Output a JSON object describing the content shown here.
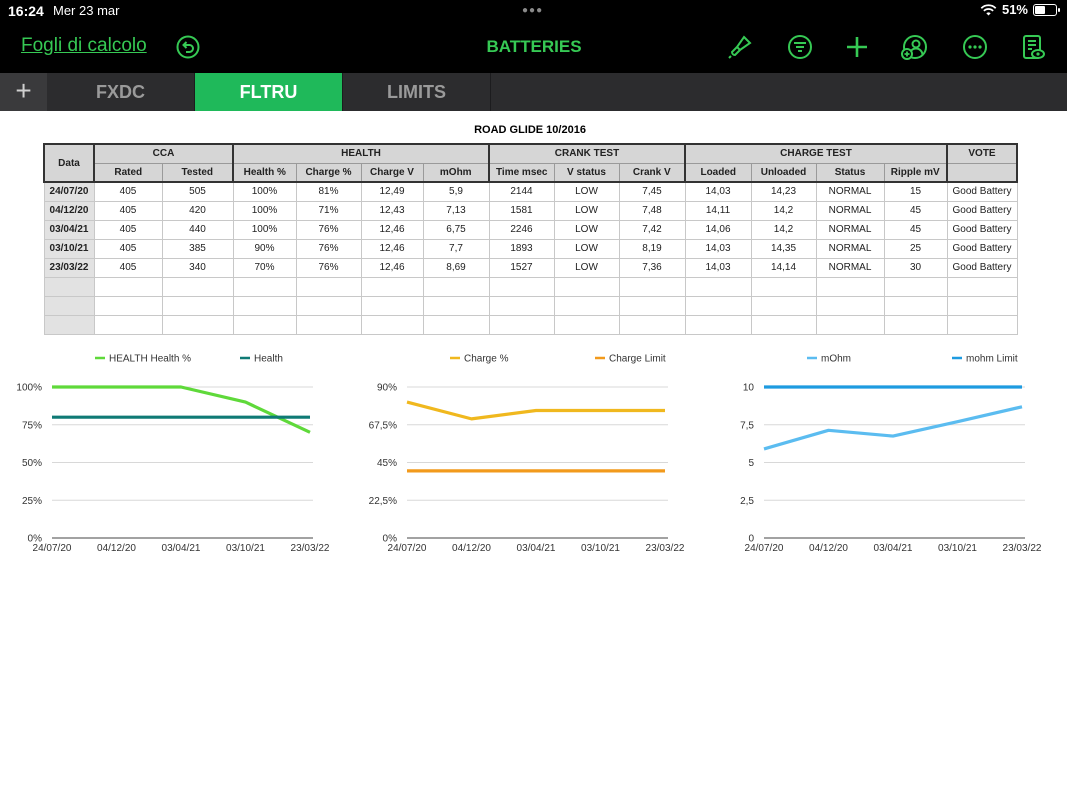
{
  "status": {
    "time": "16:24",
    "date": "Mer 23 mar",
    "battery": "51%",
    "battery_level": 0.51
  },
  "toolbar": {
    "back_label": "Fogli di calcolo",
    "title": "BATTERIES",
    "icons": [
      "undo-icon",
      "paintbrush-icon",
      "filter-icon",
      "plus-icon",
      "share-user-icon",
      "more-icon",
      "document-view-icon"
    ]
  },
  "tabs": [
    {
      "label": "FXDC",
      "active": false
    },
    {
      "label": "FLTRU",
      "active": true
    },
    {
      "label": "LIMITS",
      "active": false
    }
  ],
  "sheet": {
    "title": "ROAD GLIDE 10/2016",
    "group_headers": {
      "data": "Data",
      "cca": "CCA",
      "health": "HEALTH",
      "crank": "CRANK TEST",
      "charge": "CHARGE TEST",
      "vote": "VOTE"
    },
    "columns": [
      "Rated",
      "Tested",
      "Health %",
      "Charge %",
      "Charge V",
      "mOhm",
      "Time msec",
      "V status",
      "Crank V",
      "Loaded",
      "Unloaded",
      "Status",
      "Ripple mV"
    ],
    "rows": [
      {
        "date": "24/07/20",
        "cells": [
          "405",
          "505",
          "100%",
          "81%",
          "12,49",
          "5,9",
          "2144",
          "LOW",
          "7,45",
          "14,03",
          "14,23",
          "NORMAL",
          "15"
        ],
        "vote": "Good Battery"
      },
      {
        "date": "04/12/20",
        "cells": [
          "405",
          "420",
          "100%",
          "71%",
          "12,43",
          "7,13",
          "1581",
          "LOW",
          "7,48",
          "14,11",
          "14,2",
          "NORMAL",
          "45"
        ],
        "vote": "Good Battery"
      },
      {
        "date": "03/04/21",
        "cells": [
          "405",
          "440",
          "100%",
          "76%",
          "12,46",
          "6,75",
          "2246",
          "LOW",
          "7,42",
          "14,06",
          "14,2",
          "NORMAL",
          "45"
        ],
        "vote": "Good Battery"
      },
      {
        "date": "03/10/21",
        "cells": [
          "405",
          "385",
          "90%",
          "76%",
          "12,46",
          "7,7",
          "1893",
          "LOW",
          "8,19",
          "14,03",
          "14,35",
          "NORMAL",
          "25"
        ],
        "vote": "Good Battery"
      },
      {
        "date": "23/03/22",
        "cells": [
          "405",
          "340",
          "70%",
          "76%",
          "12,46",
          "8,69",
          "1527",
          "LOW",
          "7,36",
          "14,03",
          "14,14",
          "NORMAL",
          "30"
        ],
        "vote": "Good Battery"
      }
    ],
    "empty_rows": 3
  },
  "chart_data": [
    {
      "type": "line",
      "x": [
        "24/07/20",
        "04/12/20",
        "03/04/21",
        "03/10/21",
        "23/03/22"
      ],
      "series": [
        {
          "name": "HEALTH Health %",
          "values": [
            100,
            100,
            100,
            90,
            70
          ],
          "color": "#5fd93a"
        },
        {
          "name": "Health",
          "values": [
            80,
            80,
            80,
            80,
            80
          ],
          "color": "#0f7a75"
        }
      ],
      "yticks": [
        "0%",
        "25%",
        "50%",
        "75%",
        "100%"
      ],
      "ylim": [
        0,
        100
      ]
    },
    {
      "type": "line",
      "x": [
        "24/07/20",
        "04/12/20",
        "03/04/21",
        "03/10/21",
        "23/03/22"
      ],
      "series": [
        {
          "name": "Charge %",
          "values": [
            81,
            71,
            76,
            76,
            76
          ],
          "color": "#f0b81e"
        },
        {
          "name": "Charge Limit",
          "values": [
            40,
            40,
            40,
            40,
            40
          ],
          "color": "#f29a1c"
        }
      ],
      "yticks": [
        "0%",
        "22,5%",
        "45%",
        "67,5%",
        "90%"
      ],
      "ylim": [
        0,
        90
      ]
    },
    {
      "type": "line",
      "x": [
        "24/07/20",
        "04/12/20",
        "03/04/21",
        "03/10/21",
        "23/03/22"
      ],
      "series": [
        {
          "name": "mOhm",
          "values": [
            5.9,
            7.13,
            6.75,
            7.7,
            8.69
          ],
          "color": "#5bbcf0"
        },
        {
          "name": "mohm Limit",
          "values": [
            10,
            10,
            10,
            10,
            10
          ],
          "color": "#1e9be0"
        }
      ],
      "yticks": [
        "0",
        "2,5",
        "5",
        "7,5",
        "10"
      ],
      "ylim": [
        0,
        10
      ]
    }
  ]
}
